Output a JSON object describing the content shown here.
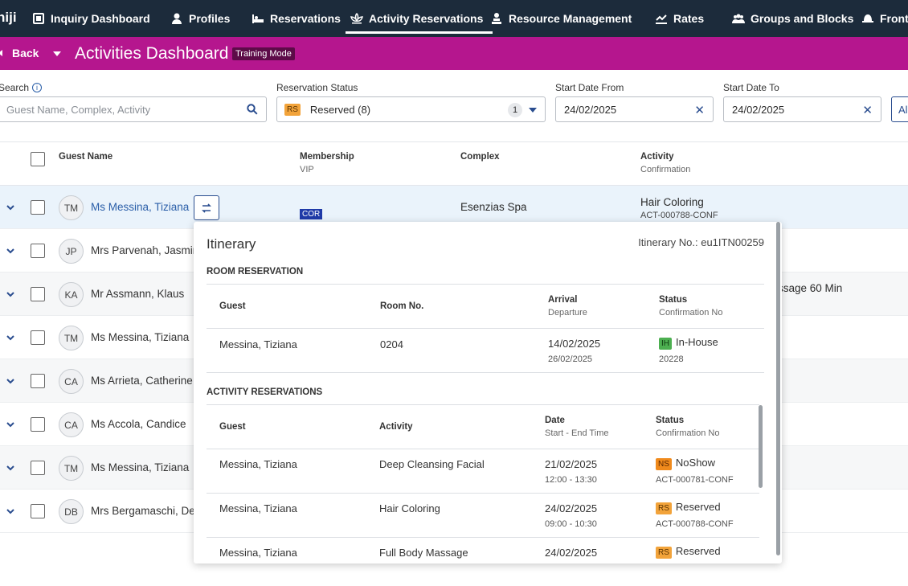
{
  "nav": {
    "logo": "hiji",
    "items": [
      {
        "label": "Inquiry Dashboard",
        "icon": "dashboard-icon"
      },
      {
        "label": "Profiles",
        "icon": "person-icon"
      },
      {
        "label": "Reservations",
        "icon": "bed-icon"
      },
      {
        "label": "Activity Reservations",
        "icon": "lotus-icon",
        "active": true
      },
      {
        "label": "Resource Management",
        "icon": "person-desk-icon"
      },
      {
        "label": "Rates",
        "icon": "rates-icon"
      },
      {
        "label": "Groups and Blocks",
        "icon": "group-icon"
      },
      {
        "label": "Front",
        "icon": "bell-icon"
      }
    ]
  },
  "subheader": {
    "back_label": "Back",
    "title": "Activities Dashboard",
    "mode_badge": "Training Mode"
  },
  "filters": {
    "search_label": "Search",
    "search_placeholder": "Guest Name, Complex, Activity",
    "status_label": "Reservation Status",
    "status_badge": "RS",
    "status_value": "Reserved (8)",
    "status_count": "1",
    "start_from_label": "Start Date From",
    "start_from_value": "24/02/2025",
    "start_to_label": "Start Date To",
    "start_to_value": "24/02/2025",
    "extra_button": "Al"
  },
  "table": {
    "headers": {
      "guest": "Guest Name",
      "membership": "Membership",
      "membership_sub": "VIP",
      "complex": "Complex",
      "activity": "Activity",
      "activity_sub": "Confirmation"
    },
    "rows": [
      {
        "initials": "TM",
        "name": "Ms Messina, Tiziana",
        "membership": "COR",
        "complex": "Esenzias Spa",
        "activity": "Hair Coloring",
        "confirmation": "ACT-000788-CONF"
      },
      {
        "initials": "JP",
        "name": "Mrs Parvenah, Jasmin"
      },
      {
        "initials": "KA",
        "name": "Mr Assmann, Klaus",
        "activity_partial": "ssage 60 Min"
      },
      {
        "initials": "TM",
        "name": "Ms Messina, Tiziana"
      },
      {
        "initials": "CA",
        "name": "Ms Arrieta, Catherine"
      },
      {
        "initials": "CA",
        "name": "Ms Accola, Candice"
      },
      {
        "initials": "TM",
        "name": "Ms Messina, Tiziana"
      },
      {
        "initials": "DB",
        "name": "Mrs Bergamaschi, De"
      }
    ]
  },
  "itinerary": {
    "title": "Itinerary",
    "number": "Itinerary No.: eu1ITN00259",
    "room_section": "ROOM RESERVATION",
    "room_headers": {
      "guest": "Guest",
      "room": "Room No.",
      "arrival": "Arrival",
      "departure": "Departure",
      "status": "Status",
      "confirmation": "Confirmation No"
    },
    "room": {
      "guest": "Messina, Tiziana",
      "room": "0204",
      "arrival": "14/02/2025",
      "departure": "26/02/2025",
      "status_code": "IH",
      "status": "In-House",
      "confirmation": "20228"
    },
    "activity_section": "ACTIVITY RESERVATIONS",
    "activity_headers": {
      "guest": "Guest",
      "activity": "Activity",
      "date": "Date",
      "time": "Start - End Time",
      "status": "Status",
      "confirmation": "Confirmation No"
    },
    "activities": [
      {
        "guest": "Messina, Tiziana",
        "activity": "Deep Cleansing Facial",
        "date": "21/02/2025",
        "time": "12:00 - 13:30",
        "status_code": "NS",
        "status": "NoShow",
        "confirmation": "ACT-000781-CONF",
        "color": "#f08a1c"
      },
      {
        "guest": "Messina, Tiziana",
        "activity": "Hair Coloring",
        "date": "24/02/2025",
        "time": "09:00 - 10:30",
        "status_code": "RS",
        "status": "Reserved",
        "confirmation": "ACT-000788-CONF",
        "color": "#f2a33a"
      },
      {
        "guest": "Messina, Tiziana",
        "activity": "Full Body Massage",
        "date": "24/02/2025",
        "time": "",
        "status_code": "RS",
        "status": "Reserved",
        "confirmation": "",
        "color": "#f2a33a"
      }
    ]
  }
}
